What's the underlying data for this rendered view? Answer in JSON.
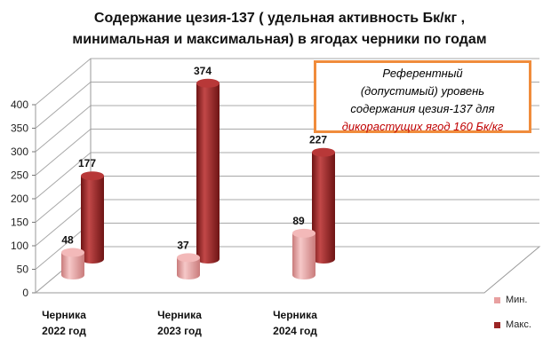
{
  "chart_data": {
    "type": "bar",
    "style": "3d-cylinder",
    "title_line1": "Содержание цезия-137 ( удельная активность Бк/кг ,",
    "title_line2": "минимальная и максимальная) в ягодах черники по годам",
    "categories": [
      [
        "Черника",
        "2022 год"
      ],
      [
        "Черника",
        "2023 год"
      ],
      [
        "Черника",
        "2024 год"
      ]
    ],
    "series": [
      {
        "name": "Мин.",
        "values": [
          48,
          37,
          89
        ],
        "color": "#e8a0a0"
      },
      {
        "name": "Макс.",
        "values": [
          177,
          374,
          227
        ],
        "color": "#9b2525"
      }
    ],
    "ylim": [
      0,
      400
    ],
    "yticks": [
      0,
      50,
      100,
      150,
      200,
      250,
      300,
      350,
      400
    ],
    "grid": true,
    "legend_position": "bottom-right",
    "annotation": {
      "lines": [
        "Референтный",
        "(допустимый) уровень",
        "содержания цезия-137 для"
      ],
      "highlight": "дикорастущих ягод 160 Бк/кг",
      "border_color": "#f08c3c",
      "highlight_color": "#c00000"
    }
  }
}
